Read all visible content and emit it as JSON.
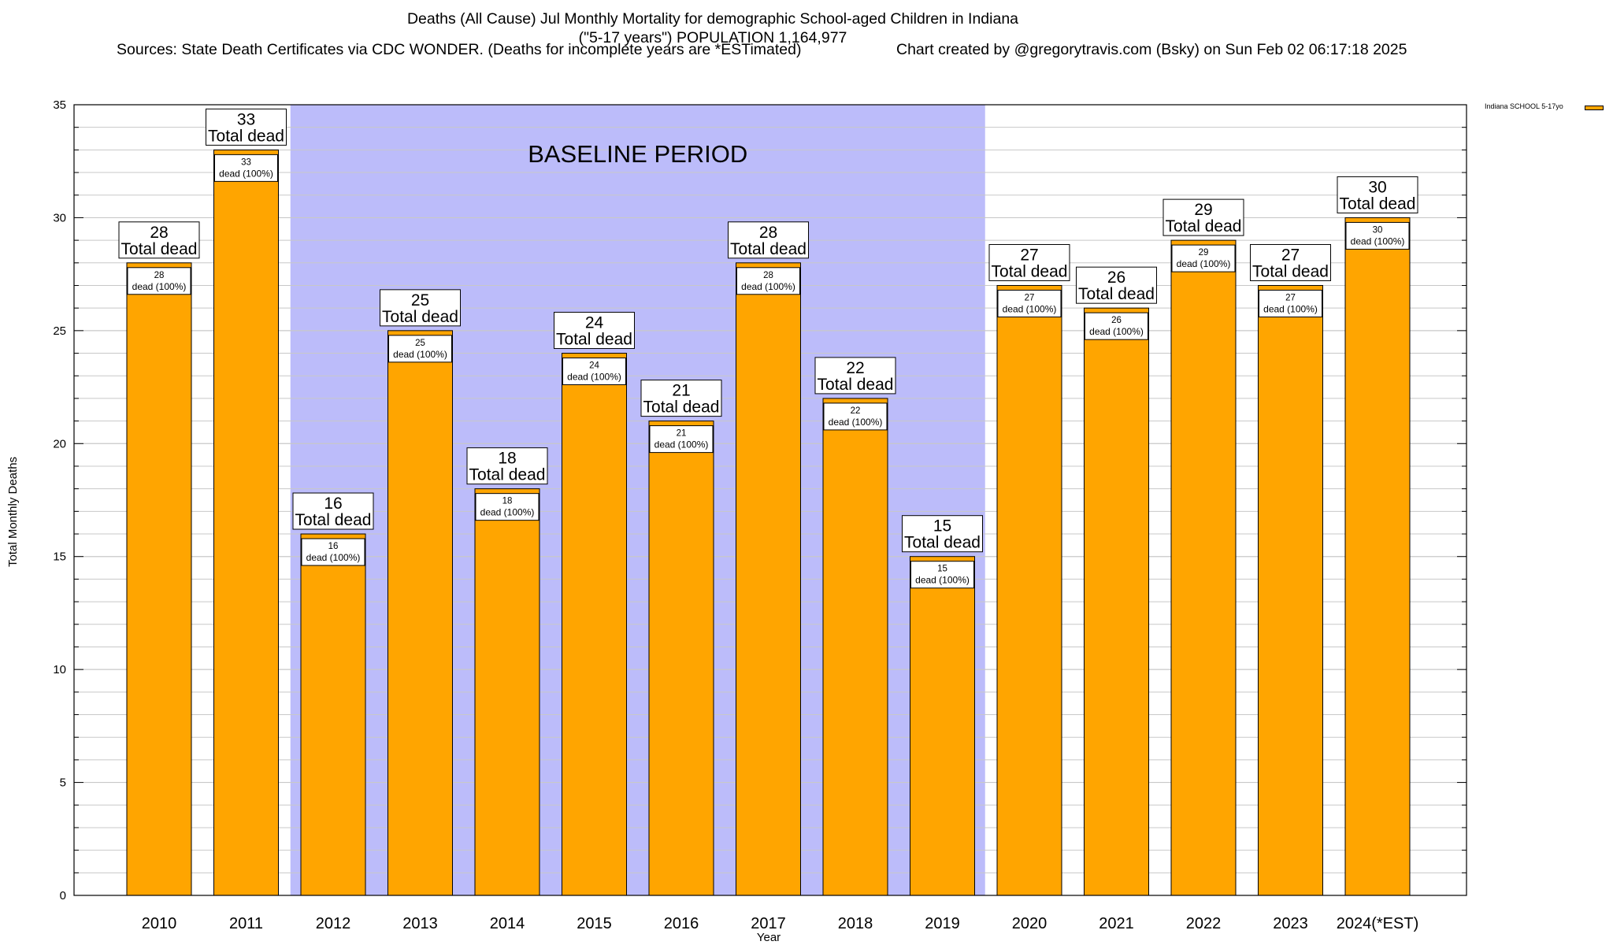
{
  "title": {
    "line1": "Deaths (All Cause) Jul Monthly Mortality for demographic School-aged Children in Indiana",
    "line2": "(\"5-17 years\") POPULATION 1,164,977",
    "sources": "Sources: State Death Certificates via CDC WONDER. (Deaths for incomplete years are *ESTimated)",
    "credit": "Chart created by @gregorytravis.com (Bsky) on Sun Feb 02 06:17:18 2025"
  },
  "colors": {
    "bar": "#ffa500",
    "baseline_band": "#bcbcfa",
    "grid": "#c8c8c8"
  },
  "chart_data": {
    "type": "bar",
    "categories": [
      "2010",
      "2011",
      "2012",
      "2013",
      "2014",
      "2015",
      "2016",
      "2017",
      "2018",
      "2019",
      "2020",
      "2021",
      "2022",
      "2023",
      "2024(*EST)"
    ],
    "series": [
      {
        "name": "Indiana SCHOOL 5-17yo",
        "values": [
          28,
          33,
          16,
          25,
          18,
          24,
          21,
          28,
          22,
          15,
          27,
          26,
          29,
          27,
          30
        ]
      }
    ],
    "xlabel": "Year",
    "ylabel": "Total Monthly Deaths",
    "ylim": [
      0,
      35
    ],
    "yticks": [
      0,
      5,
      10,
      15,
      20,
      25,
      30,
      35
    ],
    "grid": true,
    "legend_position": "top-right",
    "total_label_suffix": "Total dead",
    "inner_label_suffix": "dead (100%)",
    "baseline": {
      "label": "BASELINE PERIOD",
      "from": "2012",
      "to": "2019"
    }
  }
}
